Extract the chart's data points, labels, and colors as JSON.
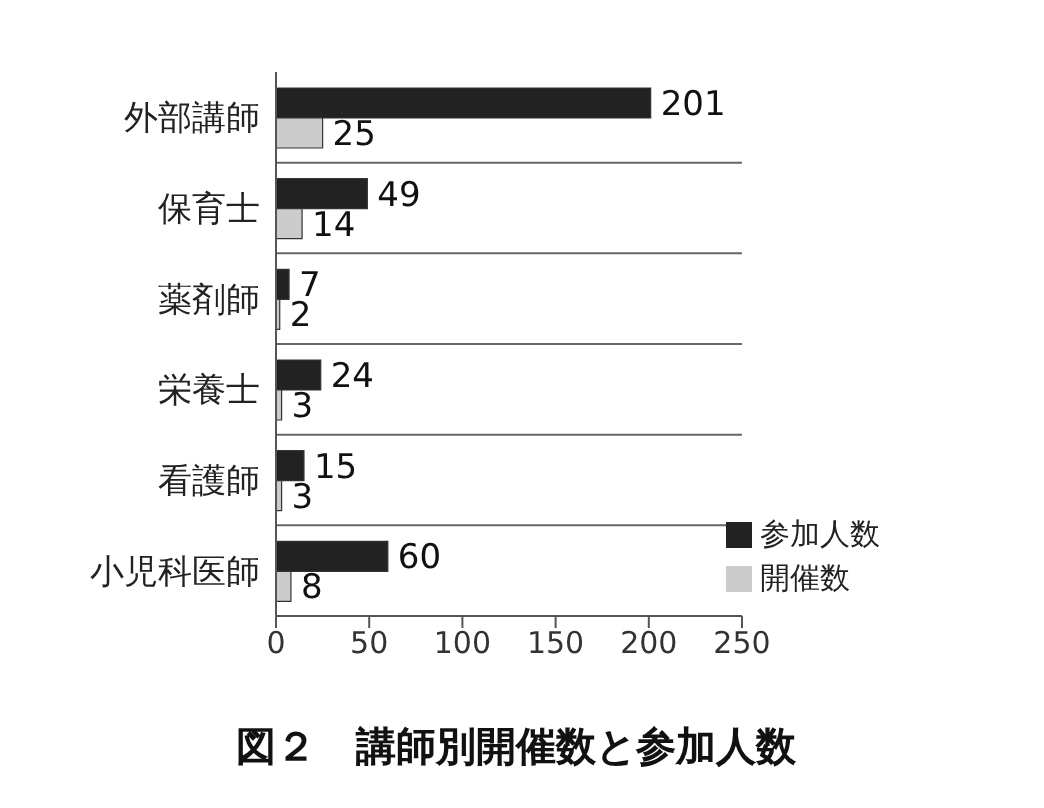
{
  "chart_data": {
    "type": "bar",
    "orientation": "horizontal",
    "title": "図２　講師別開催数と参加人数",
    "categories": [
      "外部講師",
      "保育士",
      "薬剤師",
      "栄養士",
      "看護師",
      "小児科医師"
    ],
    "series": [
      {
        "name": "参加人数",
        "color": "#222222",
        "values": [
          201,
          49,
          7,
          24,
          15,
          60
        ]
      },
      {
        "name": "開催数",
        "color": "#cccccc",
        "values": [
          25,
          14,
          2,
          3,
          3,
          8
        ]
      }
    ],
    "xlim": [
      0,
      250
    ],
    "xticks": [
      0,
      50,
      100,
      150,
      200,
      250
    ],
    "grid": "y",
    "legend": "bottom right",
    "data_labels": true
  }
}
